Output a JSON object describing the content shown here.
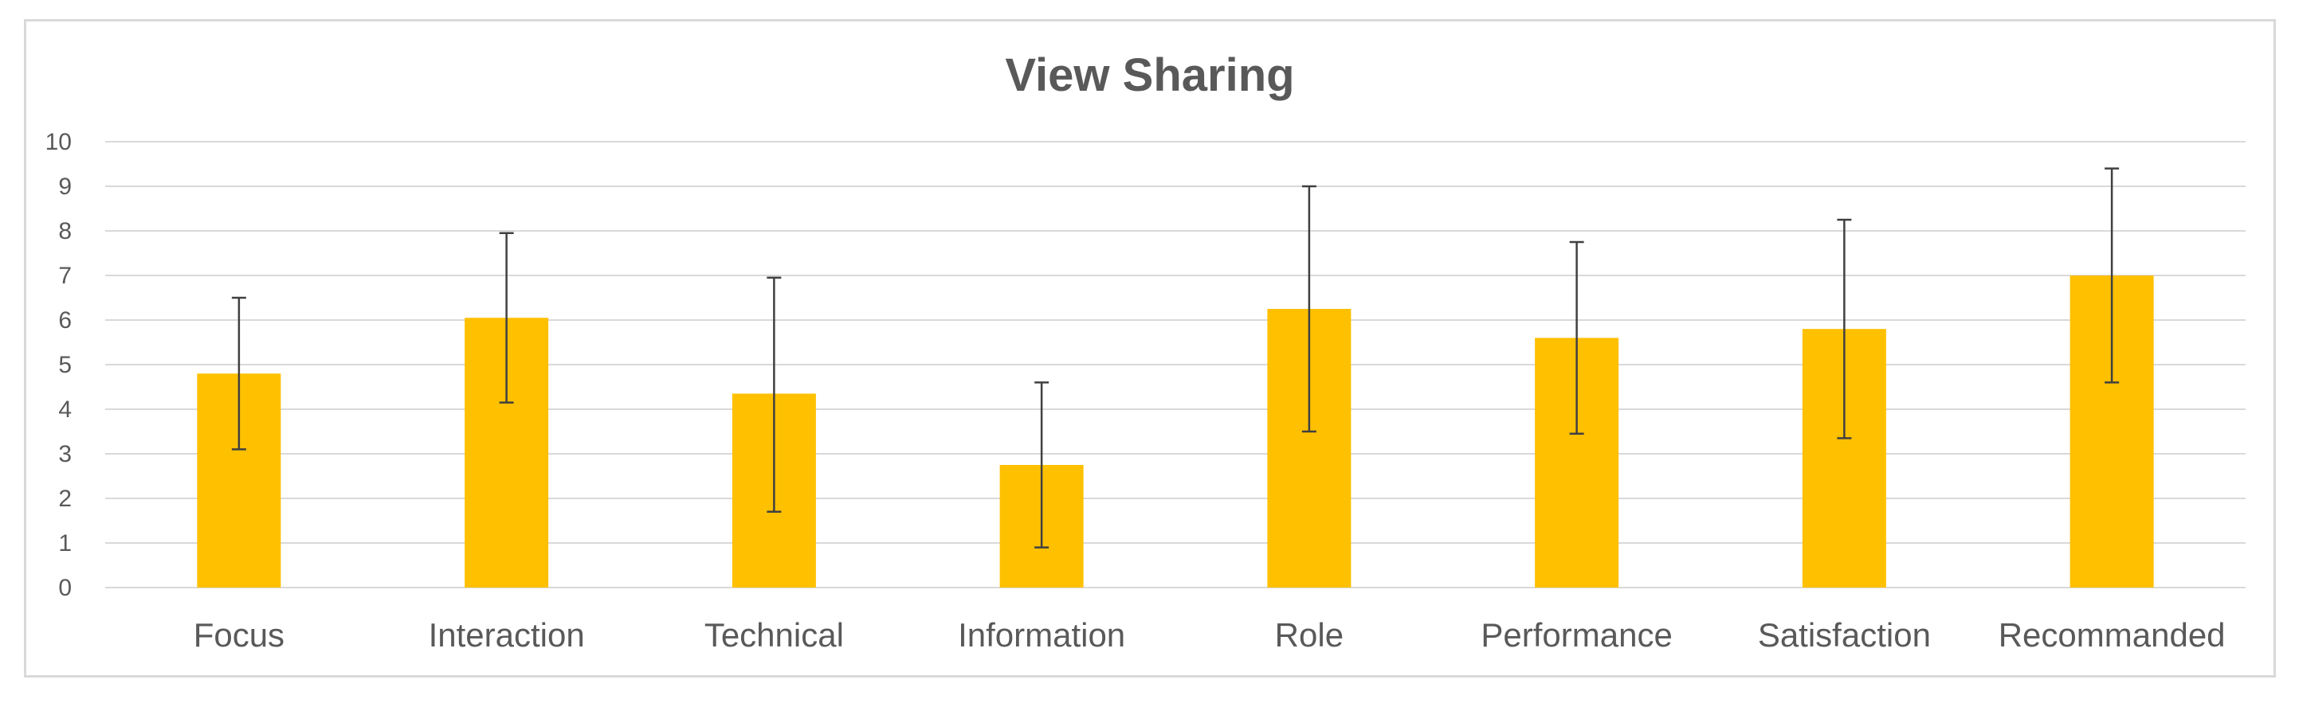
{
  "chart_data": {
    "type": "bar",
    "title": "View Sharing",
    "xlabel": "",
    "ylabel": "",
    "ylim": [
      0,
      10
    ],
    "yticks": [
      0,
      1,
      2,
      3,
      4,
      5,
      6,
      7,
      8,
      9,
      10
    ],
    "grid": true,
    "legend": "none",
    "categories": [
      "Focus",
      "Interaction",
      "Technical",
      "Information",
      "Role",
      "Performance",
      "Satisfaction",
      "Recommanded"
    ],
    "values": [
      4.8,
      6.05,
      4.35,
      2.75,
      6.25,
      5.6,
      5.8,
      7.0
    ],
    "error_bars": [
      {
        "low": 3.1,
        "high": 6.5
      },
      {
        "low": 4.15,
        "high": 7.95
      },
      {
        "low": 1.7,
        "high": 6.95
      },
      {
        "low": 0.9,
        "high": 4.6
      },
      {
        "low": 3.5,
        "high": 9.0
      },
      {
        "low": 3.45,
        "high": 7.75
      },
      {
        "low": 3.35,
        "high": 8.25
      },
      {
        "low": 4.6,
        "high": 9.4
      }
    ],
    "colors": {
      "bar": "#ffc000",
      "error_bar": "#404040",
      "grid": "#d9d9d9",
      "title": "#595959",
      "text": "#595959"
    }
  }
}
